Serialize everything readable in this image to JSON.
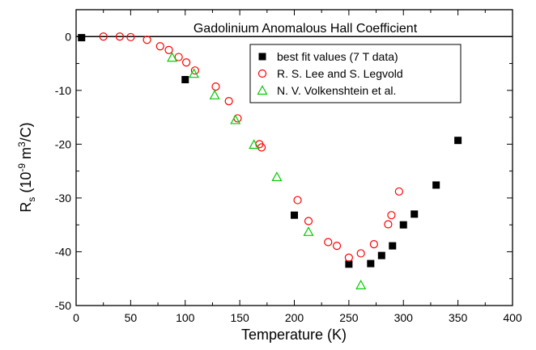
{
  "chart_data": {
    "type": "scatter",
    "title": "Gadolinium Anomalous Hall Coefficient",
    "xlabel": "Temperature (K)",
    "ylabel": {
      "main": "R",
      "sub": "s",
      "pre": " (10",
      "exp1": "-9",
      "mid": " m",
      "exp2": "3",
      "post": "/C)"
    },
    "xlim": [
      0,
      400
    ],
    "ylim": [
      -50,
      5
    ],
    "xticks": [
      "0",
      "50",
      "100",
      "150",
      "200",
      "250",
      "300",
      "350",
      "400"
    ],
    "yticks": [
      "0",
      "-10",
      "-20",
      "-30",
      "-40",
      "-50"
    ],
    "reference_line_y": 0,
    "legend_position": "top-right",
    "series": [
      {
        "name": "best fit values (7 T data)",
        "marker": "filled-square",
        "color": "#000000",
        "points": [
          [
            5,
            -0.2
          ],
          [
            100,
            -8
          ],
          [
            200,
            -33.2
          ],
          [
            250,
            -42.3
          ],
          [
            270,
            -42.2
          ],
          [
            280,
            -40.7
          ],
          [
            290,
            -38.9
          ],
          [
            300,
            -35
          ],
          [
            310,
            -33
          ],
          [
            330,
            -27.6
          ],
          [
            350,
            -19.3
          ]
        ]
      },
      {
        "name": "R. S. Lee and S. Legvold",
        "marker": "open-circle",
        "color": "#ff0000",
        "points": [
          [
            25,
            0
          ],
          [
            40,
            0
          ],
          [
            50,
            -0.1
          ],
          [
            65,
            -0.6
          ],
          [
            77,
            -1.8
          ],
          [
            85,
            -2.5
          ],
          [
            94,
            -3.8
          ],
          [
            101,
            -4.8
          ],
          [
            109,
            -6.3
          ],
          [
            128,
            -9.3
          ],
          [
            140,
            -12
          ],
          [
            148,
            -15.2
          ],
          [
            168,
            -20
          ],
          [
            170,
            -20.6
          ],
          [
            203,
            -30.4
          ],
          [
            213,
            -34.3
          ],
          [
            231,
            -38.2
          ],
          [
            239,
            -38.9
          ],
          [
            250,
            -41.1
          ],
          [
            261,
            -40.3
          ],
          [
            273,
            -38.6
          ],
          [
            286,
            -34.9
          ],
          [
            289,
            -33.2
          ],
          [
            296,
            -28.8
          ]
        ]
      },
      {
        "name": "N. V. Volkenshtein et al.",
        "marker": "open-triangle",
        "color": "#00cc00",
        "points": [
          [
            88,
            -3.9
          ],
          [
            108,
            -6.9
          ],
          [
            127,
            -10.9
          ],
          [
            146,
            -15.5
          ],
          [
            163,
            -20.1
          ],
          [
            184,
            -26.1
          ],
          [
            213,
            -36.3
          ],
          [
            261,
            -46.2
          ]
        ]
      }
    ]
  }
}
